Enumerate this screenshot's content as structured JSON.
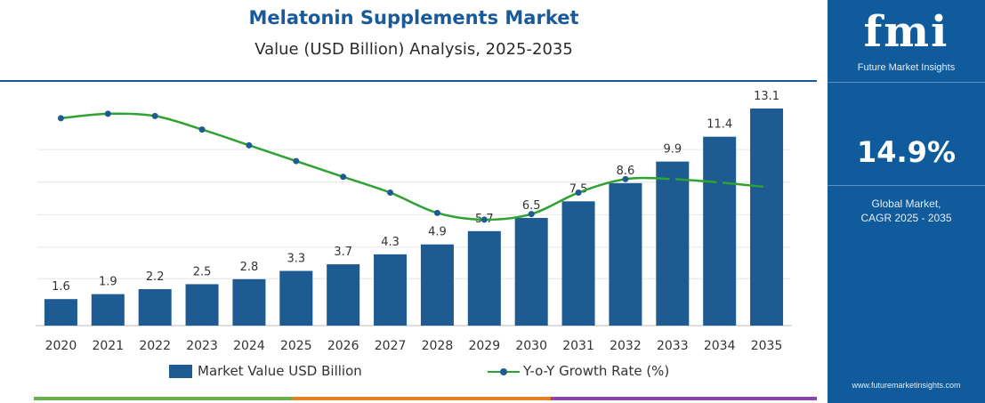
{
  "header": {
    "title": "Melatonin Supplements Market",
    "subtitle": "Value (USD Billion) Analysis, 2025-2035"
  },
  "legend": {
    "bar_label": "Market Value USD Billion",
    "line_label": "Y-o-Y Growth Rate (%)"
  },
  "sidebar": {
    "logo_text": "fmi",
    "logo_subtitle": "Future Market Insights",
    "cagr_value": "14.9%",
    "cagr_label_line1": "Global Market,",
    "cagr_label_line2": "CAGR 2025 - 2035",
    "website": "www.futuremarketinsights.com"
  },
  "colors": {
    "bar": "#1e5b93",
    "line": "#2ea331",
    "marker": "#1e5b93",
    "sidebar_bg": "#0f5b9c"
  },
  "chart_data": {
    "type": "bar",
    "categories": [
      "2020",
      "2021",
      "2022",
      "2023",
      "2024",
      "2025",
      "2026",
      "2027",
      "2028",
      "2029",
      "2030",
      "2031",
      "2032",
      "2033",
      "2034",
      "2035"
    ],
    "series": [
      {
        "name": "Market Value USD Billion",
        "type": "bar",
        "values": [
          1.6,
          1.9,
          2.2,
          2.5,
          2.8,
          3.3,
          3.7,
          4.3,
          4.9,
          5.7,
          6.5,
          7.5,
          8.6,
          9.9,
          11.4,
          13.1
        ],
        "value_labels": [
          "1.6",
          "1.9",
          "2.2",
          "2.5",
          "2.8",
          "3.3",
          "3.7",
          "4.3",
          "4.9",
          "5.7",
          "6.5",
          "7.5",
          "8.6",
          "9.9",
          "11.4",
          "13.1"
        ]
      },
      {
        "name": "Y-o-Y Growth Rate (%)",
        "type": "line",
        "values": [
          18.4,
          18.8,
          18.6,
          17.4,
          16.0,
          14.6,
          13.2,
          11.8,
          10.0,
          9.4,
          9.9,
          11.8,
          13.0,
          13.0,
          12.7,
          12.3
        ]
      }
    ],
    "bar_ylim": [
      0,
      13.1
    ],
    "line_ylim": [
      0,
      21
    ],
    "grid": true,
    "legend_position": "bottom"
  }
}
